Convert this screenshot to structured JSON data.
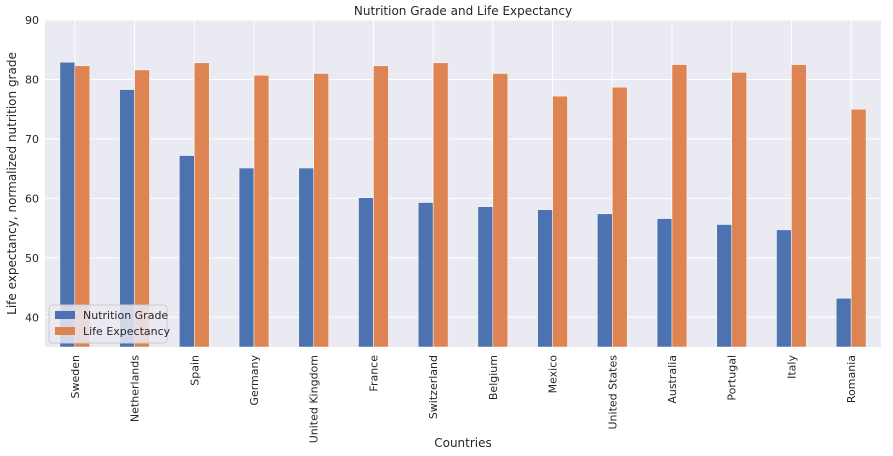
{
  "chart_data": {
    "type": "bar",
    "title": "Nutrition Grade and Life Expectancy",
    "xlabel": "Countries",
    "ylabel": "Life expectancy, normalized nutrition grade",
    "ylim": [
      35,
      90
    ],
    "yticks": [
      40,
      50,
      60,
      70,
      80,
      90
    ],
    "grid": true,
    "legend_position": "lower-left",
    "categories": [
      "Sweden",
      "Netherlands",
      "Spain",
      "Germany",
      "United Kingdom",
      "France",
      "Switzerland",
      "Belgium",
      "Mexico",
      "United States",
      "Australia",
      "Portugal",
      "Italy",
      "Romania"
    ],
    "series": [
      {
        "name": "Nutrition Grade",
        "color": "#4c72b0",
        "values": [
          82.9,
          78.3,
          67.2,
          65.1,
          65.1,
          60.1,
          59.3,
          58.6,
          58.1,
          57.4,
          56.6,
          55.6,
          54.7,
          43.2
        ]
      },
      {
        "name": "Life Expectancy",
        "color": "#dd8452",
        "values": [
          82.3,
          81.6,
          82.8,
          80.7,
          81.0,
          82.3,
          82.8,
          81.0,
          77.2,
          78.7,
          82.5,
          81.2,
          82.5,
          75.0
        ]
      }
    ]
  }
}
